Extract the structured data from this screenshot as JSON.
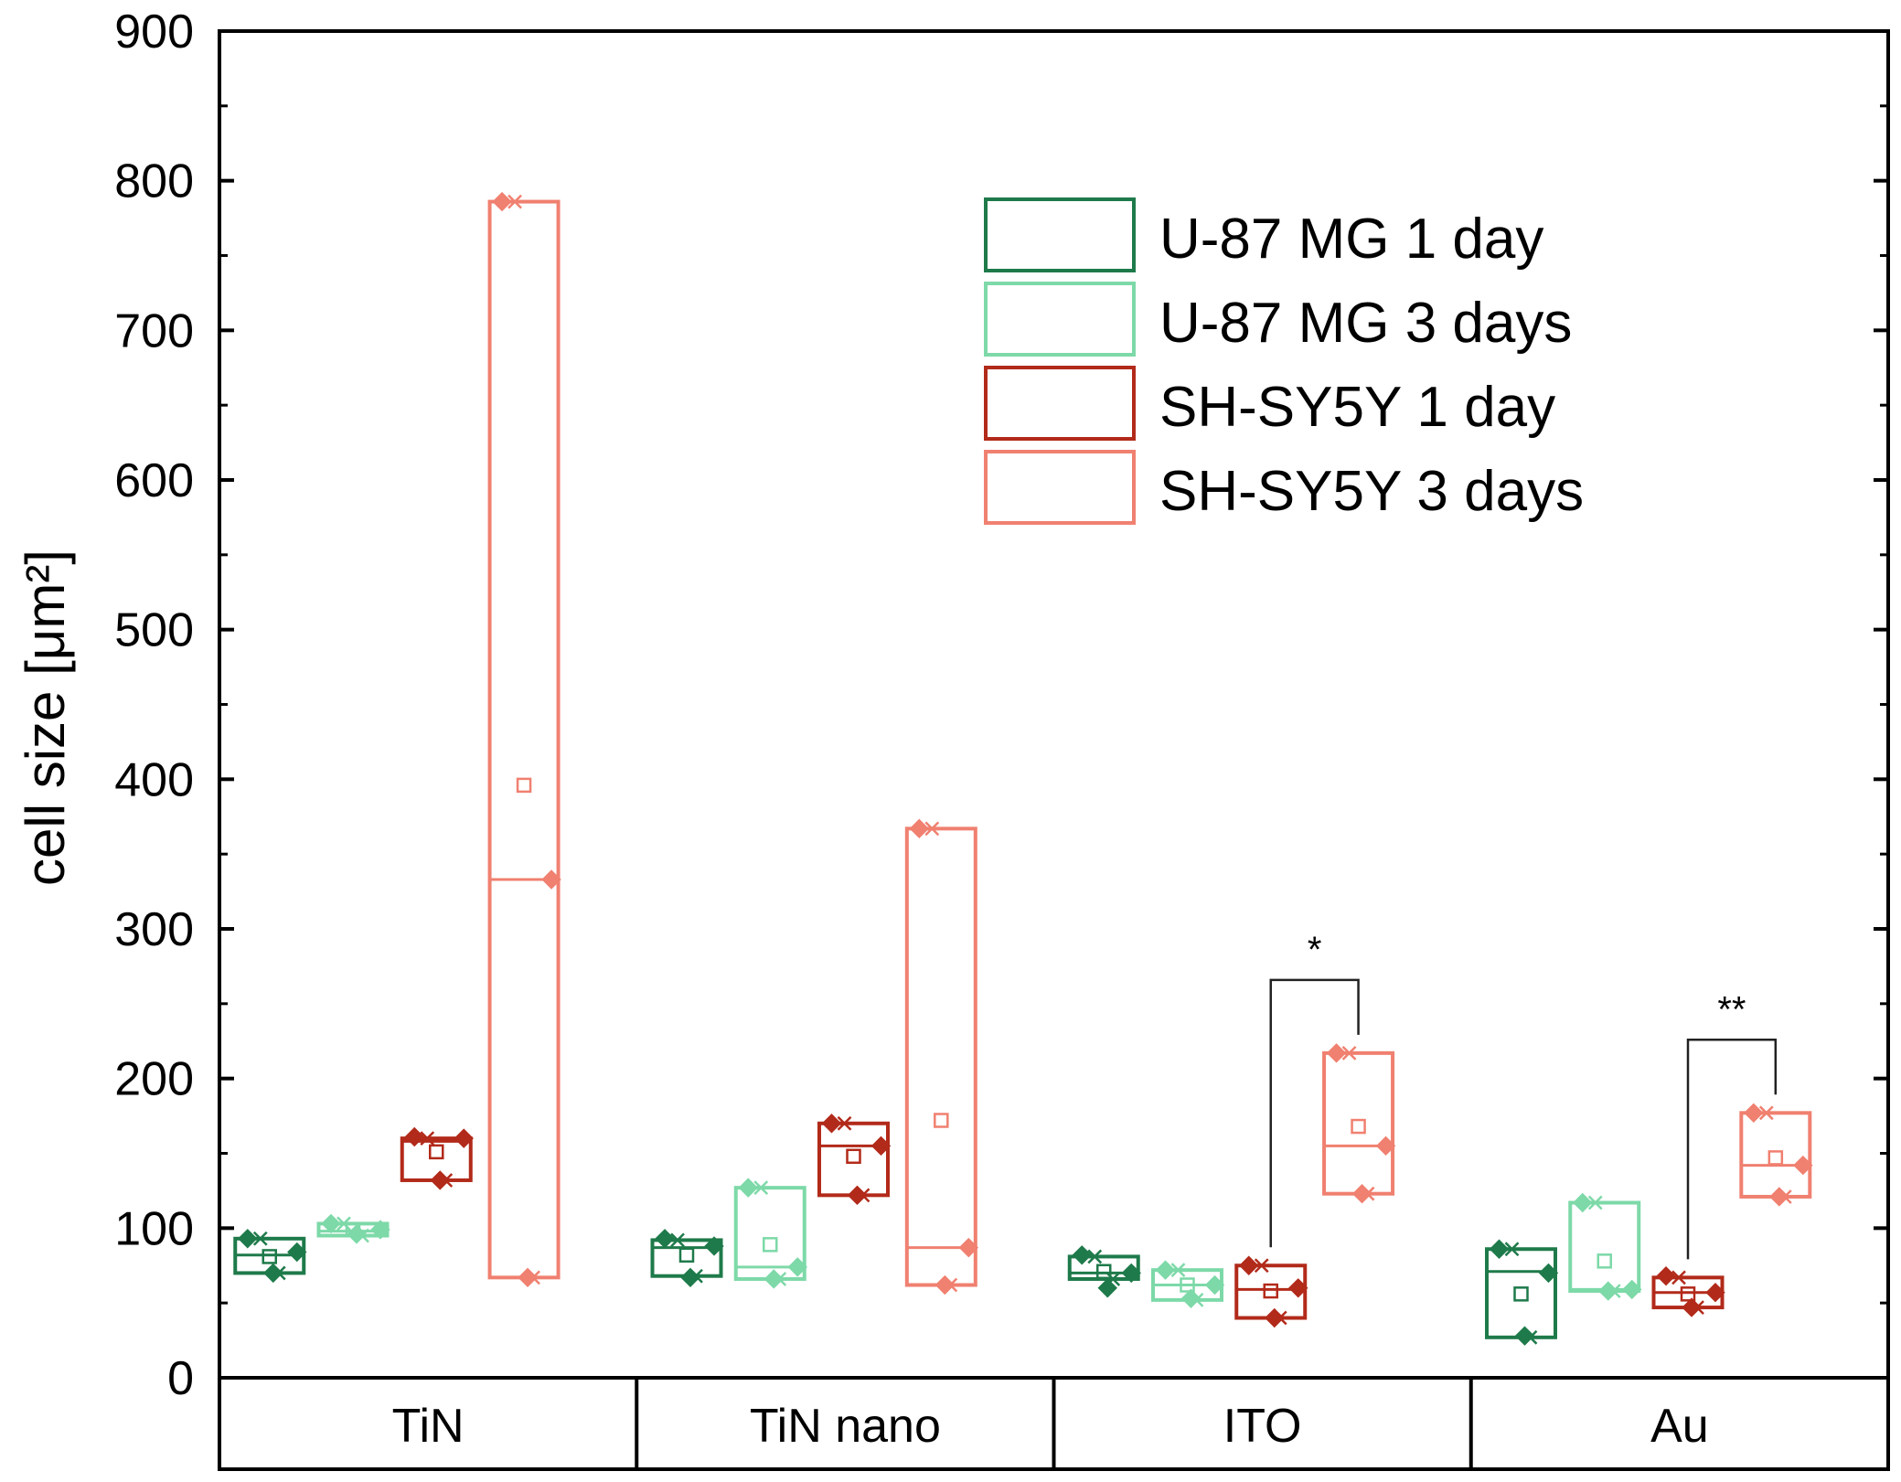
{
  "chart_data": {
    "type": "box",
    "ylabel": "cell size [μm²]",
    "ylim": [
      0,
      900
    ],
    "yticks": [
      0,
      100,
      200,
      300,
      400,
      500,
      600,
      700,
      800,
      900
    ],
    "categories": [
      "TiN",
      "TiN nano",
      "ITO",
      "Au"
    ],
    "legend_position": "top-right",
    "series": [
      {
        "name": "U-87 MG 1 day",
        "color": "#1e7a4a",
        "boxes": [
          {
            "q1": 70,
            "median": 82,
            "q3": 93,
            "mean": 81,
            "points": [
              93,
              70,
              84
            ]
          },
          {
            "q1": 68,
            "median": 87,
            "q3": 92,
            "mean": 82,
            "points": [
              93,
              67,
              88
            ]
          },
          {
            "q1": 66,
            "median": 70,
            "q3": 81,
            "mean": 71,
            "points": [
              82,
              60,
              70
            ]
          },
          {
            "q1": 27,
            "median": 71,
            "q3": 86,
            "mean": 56,
            "points": [
              86,
              28,
              70
            ]
          }
        ]
      },
      {
        "name": "U-87 MG 3 days",
        "color": "#7dd9a8",
        "boxes": [
          {
            "q1": 95,
            "median": 98,
            "q3": 103,
            "mean": 99,
            "points": [
              103,
              96,
              99
            ]
          },
          {
            "q1": 66,
            "median": 74,
            "q3": 127,
            "mean": 89,
            "points": [
              127,
              66,
              74
            ]
          },
          {
            "q1": 52,
            "median": 62,
            "q3": 72,
            "mean": 62,
            "points": [
              72,
              53,
              62
            ]
          },
          {
            "q1": 58,
            "median": 59,
            "q3": 117,
            "mean": 78,
            "points": [
              117,
              58,
              59
            ]
          }
        ]
      },
      {
        "name": "SH-SY5Y 1 day",
        "color": "#b22a1a",
        "boxes": [
          {
            "q1": 132,
            "median": 158,
            "q3": 160,
            "mean": 151,
            "points": [
              161,
              132,
              160
            ]
          },
          {
            "q1": 122,
            "median": 155,
            "q3": 170,
            "mean": 148,
            "points": [
              170,
              122,
              155
            ]
          },
          {
            "q1": 40,
            "median": 59,
            "q3": 75,
            "mean": 58,
            "points": [
              75,
              40,
              60
            ]
          },
          {
            "q1": 47,
            "median": 57,
            "q3": 67,
            "mean": 56,
            "points": [
              68,
              47,
              57
            ]
          }
        ]
      },
      {
        "name": "SH-SY5Y 3 days",
        "color": "#f08070",
        "boxes": [
          {
            "q1": 67,
            "median": 333,
            "q3": 786,
            "mean": 396,
            "points": [
              786,
              67,
              333
            ]
          },
          {
            "q1": 62,
            "median": 87,
            "q3": 367,
            "mean": 172,
            "points": [
              367,
              62,
              87
            ]
          },
          {
            "q1": 123,
            "median": 155,
            "q3": 217,
            "mean": 168,
            "points": [
              217,
              123,
              155
            ]
          },
          {
            "q1": 121,
            "median": 142,
            "q3": 177,
            "mean": 147,
            "points": [
              177,
              121,
              142
            ]
          }
        ]
      }
    ],
    "significance": [
      {
        "category": "ITO",
        "label": "*",
        "from_series": 2,
        "to_series": 3
      },
      {
        "category": "Au",
        "label": "**",
        "from_series": 2,
        "to_series": 3
      }
    ]
  }
}
